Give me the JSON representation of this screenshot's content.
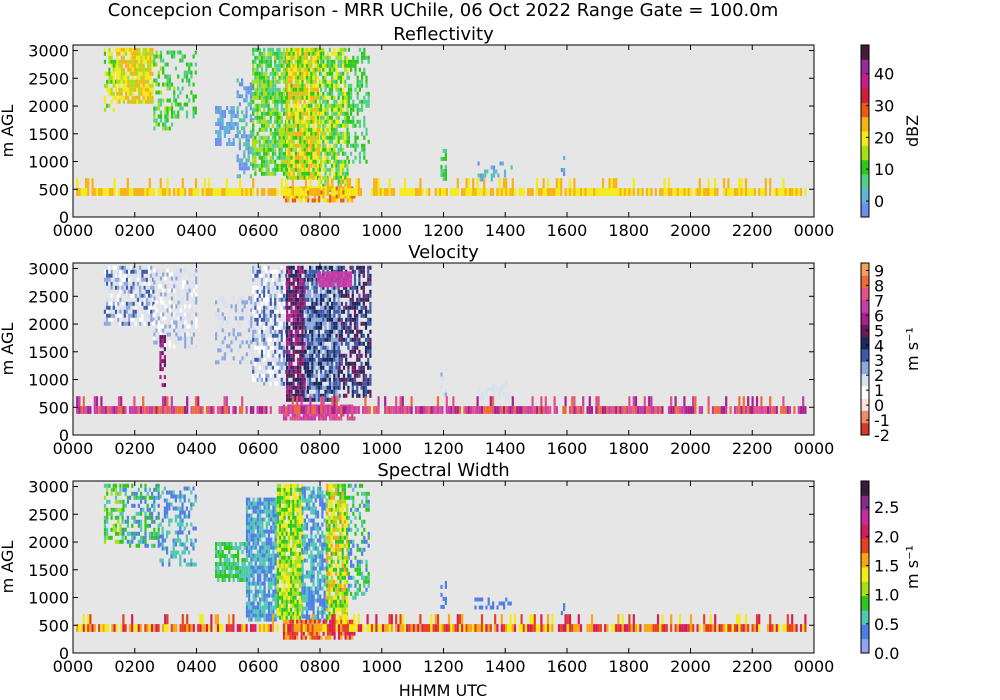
{
  "figure": {
    "title": "Concepcion Comparison - MRR UChile, 06 Oct 2022 Range Gate = 100.0m",
    "xlabel": "HHMM UTC"
  },
  "chart_data": [
    {
      "type": "heatmap",
      "title": "Reflectivity",
      "xlabel": "",
      "ylabel": "m AGL",
      "x_ticks": [
        "0000",
        "0200",
        "0400",
        "0600",
        "0800",
        "1000",
        "1200",
        "1400",
        "1600",
        "1800",
        "2000",
        "2200",
        "0000"
      ],
      "xlim": [
        0,
        24
      ],
      "y_ticks": [
        0,
        500,
        1000,
        1500,
        2000,
        2500,
        3000
      ],
      "ylim": [
        0,
        3100
      ],
      "colorbar": {
        "label": "dBZ",
        "range": [
          -5,
          49
        ],
        "ticks": [
          "0",
          "10",
          "20",
          "30",
          "40"
        ],
        "tick_values": [
          0,
          10,
          20,
          30,
          40
        ],
        "colors": [
          "#6f8ff0",
          "#5fb4d8",
          "#4fd08a",
          "#2ec81a",
          "#a8e018",
          "#f3ec18",
          "#f7b214",
          "#ec5a12",
          "#d21c3a",
          "#c81c86",
          "#9a2a9a",
          "#4a1a3a"
        ]
      },
      "background": "#e6e6e6"
    },
    {
      "type": "heatmap",
      "title": "Velocity",
      "xlabel": "",
      "ylabel": "m AGL",
      "x_ticks": [
        "0000",
        "0200",
        "0400",
        "0600",
        "0800",
        "1000",
        "1200",
        "1400",
        "1600",
        "1800",
        "2000",
        "2200",
        "0000"
      ],
      "xlim": [
        0,
        24
      ],
      "y_ticks": [
        0,
        500,
        1000,
        1500,
        2000,
        2500,
        3000
      ],
      "ylim": [
        0,
        3100
      ],
      "colorbar": {
        "label": "m s⁻¹",
        "range": [
          -2,
          9.5
        ],
        "ticks": [
          "-2",
          "-1",
          "0",
          "1",
          "2",
          "3",
          "4",
          "5",
          "6",
          "7",
          "8",
          "9"
        ],
        "tick_values": [
          -2,
          -1,
          0,
          1,
          2,
          3,
          4,
          5,
          6,
          7,
          8,
          9
        ],
        "colors": [
          "#d4382a",
          "#f08a6a",
          "#fbe3dc",
          "#ffffff",
          "#d8e0f2",
          "#8ea9dc",
          "#3b5aa8",
          "#1a2a5e",
          "#6a1a5a",
          "#a8208c",
          "#c83ca8",
          "#e2508a",
          "#ee6a3a",
          "#f5a05a"
        ]
      },
      "background": "#e6e6e6"
    },
    {
      "type": "heatmap",
      "title": "Spectral Width",
      "xlabel": "HHMM UTC",
      "ylabel": "m AGL",
      "x_ticks": [
        "0000",
        "0200",
        "0400",
        "0600",
        "0800",
        "1000",
        "1200",
        "1400",
        "1600",
        "1800",
        "2000",
        "2200",
        "0000"
      ],
      "xlim": [
        0,
        24
      ],
      "y_ticks": [
        0,
        500,
        1000,
        1500,
        2000,
        2500,
        3000
      ],
      "ylim": [
        0,
        3100
      ],
      "colorbar": {
        "label": "m s⁻¹",
        "range": [
          0,
          2.95
        ],
        "ticks": [
          "0.0",
          "0.5",
          "1.0",
          "1.5",
          "2.0",
          "2.5"
        ],
        "tick_values": [
          0,
          0.5,
          1.0,
          1.5,
          2.0,
          2.5
        ],
        "colors": [
          "#8fa6ee",
          "#4f7ee8",
          "#4fc8b4",
          "#2ec81a",
          "#a8e018",
          "#f3ec18",
          "#f7a614",
          "#e8401a",
          "#d81c5a",
          "#c82aa0",
          "#8a2a8a",
          "#3a1a3a"
        ]
      },
      "background": "#e6e6e6"
    }
  ]
}
